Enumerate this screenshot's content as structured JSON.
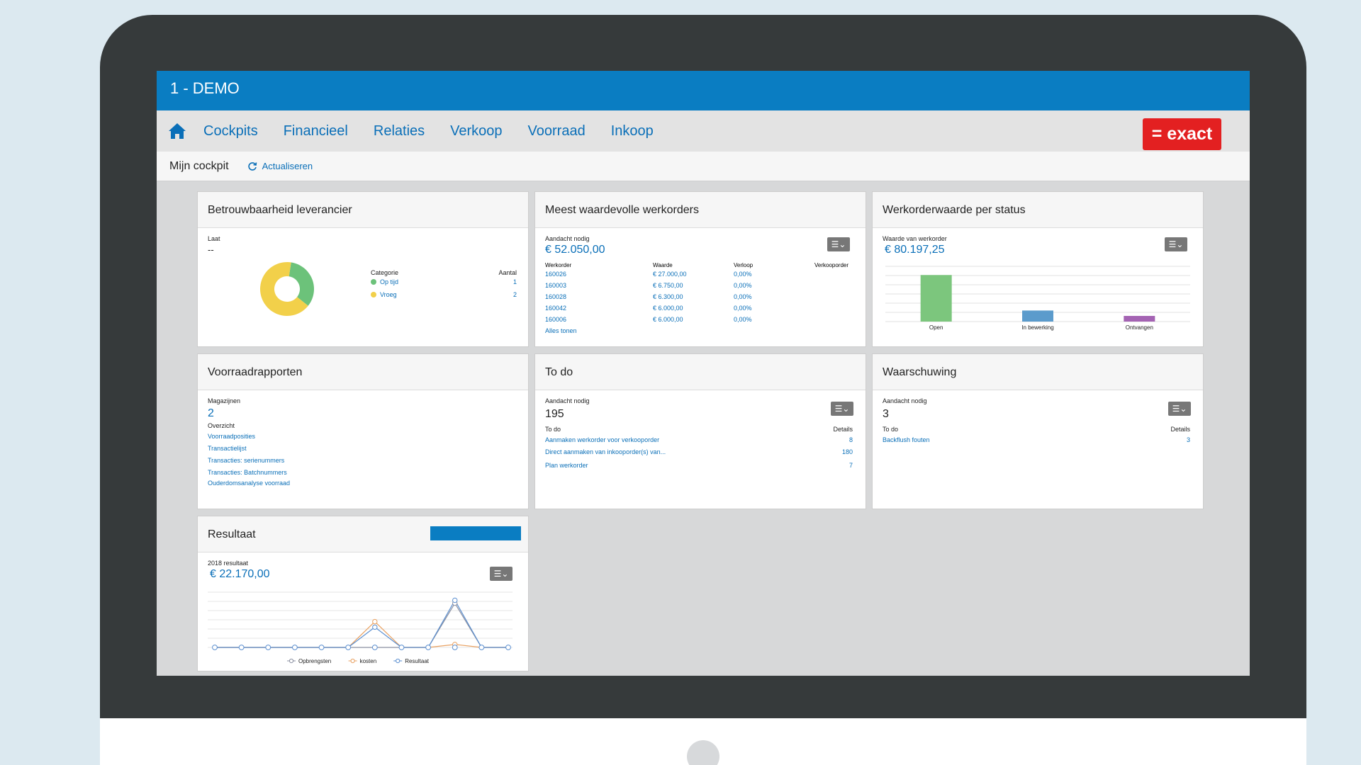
{
  "app": {
    "title": "1 - DEMO"
  },
  "nav": {
    "items": [
      "Cockpits",
      "Financieel",
      "Relaties",
      "Verkoop",
      "Voorraad",
      "Inkoop"
    ],
    "logo": "= exact"
  },
  "subbar": {
    "title": "Mijn cockpit",
    "refresh_label": "Actualiseren"
  },
  "supplier": {
    "title": "Betrouwbaarheid leverancier",
    "label": "Laat",
    "value": "--",
    "col_category": "Categorie",
    "col_count": "Aantal",
    "rows": [
      {
        "label": "Op tijd",
        "count": "1",
        "color": "#6cc27a"
      },
      {
        "label": "Vroeg",
        "count": "2",
        "color": "#f2d04a"
      }
    ],
    "chart_data": {
      "type": "pie",
      "categories": [
        "Op tijd",
        "Vroeg"
      ],
      "values": [
        1,
        2
      ],
      "colors": [
        "#6cc27a",
        "#f2d04a"
      ]
    }
  },
  "workorders": {
    "title": "Meest waardevolle werkorders",
    "label": "Aandacht nodig",
    "value": "€ 52.050,00",
    "headers": [
      "Werkorder",
      "Waarde",
      "Verloop",
      "Verkooporder"
    ],
    "rows": [
      [
        "160026",
        "€ 27.000,00",
        "0,00%",
        ""
      ],
      [
        "160003",
        "€ 6.750,00",
        "0,00%",
        ""
      ],
      [
        "160028",
        "€ 6.300,00",
        "0,00%",
        ""
      ],
      [
        "160042",
        "€ 6.000,00",
        "0,00%",
        ""
      ],
      [
        "160006",
        "€ 6.000,00",
        "0,00%",
        ""
      ]
    ],
    "show_all": "Alles tonen"
  },
  "status": {
    "title": "Werkorderwaarde per status",
    "label": "Waarde van werkorder",
    "value": "€ 80.197,25",
    "chart_data": {
      "type": "bar",
      "categories": [
        "Open",
        "In bewerking",
        "Ontvangen"
      ],
      "values": [
        59000,
        14000,
        7200
      ],
      "colors": [
        "#7cc67d",
        "#5b9bcc",
        "#a463b3"
      ],
      "ylim": [
        0,
        70000
      ],
      "grid": true
    }
  },
  "stock": {
    "title": "Voorraadrapporten",
    "label": "Magazijnen",
    "value": "2",
    "overview_label": "Overzicht",
    "links": [
      "Voorraadposities",
      "Transactielijst",
      "Transacties: serienummers",
      "Transacties: Batchnummers",
      "Ouderdomsanalyse voorraad"
    ]
  },
  "todo": {
    "title": "To do",
    "label": "Aandacht nodig",
    "value": "195",
    "col_todo": "To do",
    "col_details": "Details",
    "rows": [
      {
        "label": "Aanmaken werkorder voor verkooporder",
        "count": "8"
      },
      {
        "label": "Direct aanmaken van inkooporder(s) van...",
        "count": "180"
      },
      {
        "label": "Plan werkorder",
        "count": "7"
      }
    ]
  },
  "warning": {
    "title": "Waarschuwing",
    "label": "Aandacht nodig",
    "value": "3",
    "col_todo": "To do",
    "col_details": "Details",
    "rows": [
      {
        "label": "Backflush fouten",
        "count": "3"
      }
    ]
  },
  "result": {
    "title": "Resultaat",
    "label": "2018 resultaat",
    "value": "€ 22.170,00",
    "chart_data": {
      "type": "line",
      "x": [
        1,
        2,
        3,
        4,
        5,
        6,
        7,
        8,
        9,
        10,
        11,
        12
      ],
      "series": [
        {
          "name": "Opbrengsten",
          "values": [
            0,
            0,
            0,
            0,
            0,
            0,
            0,
            0,
            0,
            12,
            0,
            0
          ],
          "color": "#8a8fa0"
        },
        {
          "name": "kosten",
          "values": [
            0,
            0,
            0,
            0,
            0,
            0,
            7,
            0,
            0,
            0.8,
            0,
            0
          ],
          "color": "#e8a060"
        },
        {
          "name": "Resultaat",
          "values": [
            0,
            0,
            0,
            0,
            0,
            0,
            5.5,
            0,
            0,
            12.8,
            0,
            0
          ],
          "color": "#5b8fd0"
        }
      ],
      "ylim": [
        0,
        15
      ],
      "grid": true,
      "legend": "bottom"
    }
  }
}
